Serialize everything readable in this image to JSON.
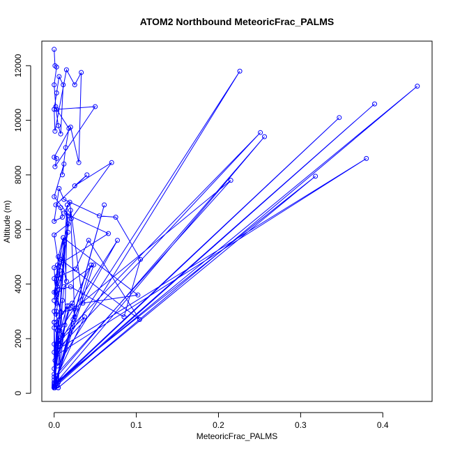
{
  "chart_data": {
    "type": "line",
    "title": "ATOM2 Northbound MeteoricFrac_PALMS",
    "xlabel": "MeteoricFrac_PALMS",
    "ylabel": "Altitude (m)",
    "xlim": [
      -0.015,
      0.46
    ],
    "ylim": [
      -300,
      12900
    ],
    "xticks": [
      0.0,
      0.1,
      0.2,
      0.3,
      0.4
    ],
    "xtick_labels": [
      "0.0",
      "0.1",
      "0.2",
      "0.3",
      "0.4"
    ],
    "yticks": [
      0,
      2000,
      4000,
      6000,
      8000,
      10000,
      12000
    ],
    "ytick_labels": [
      "0",
      "2000",
      "4000",
      "6000",
      "8000",
      "10000",
      "12000"
    ],
    "grid": false,
    "legend": "none",
    "colors": {
      "series": "#0000ff",
      "axis": "#000000",
      "background": "#ffffff"
    },
    "series": [
      {
        "marker": "open-circle",
        "line": true,
        "x": [
          0.0,
          0.001,
          0.003,
          0.0,
          0.002,
          0.005,
          0.008,
          0.011,
          0.006,
          0.003,
          0.0,
          0.001,
          0.015,
          0.025,
          0.033,
          0.03,
          0.02,
          0.0,
          0.003,
          0.001,
          0.05,
          0.003,
          0.018,
          0.014,
          0.01,
          0.012,
          0.0,
          0.021,
          0.07,
          0.025,
          0.04,
          0.002,
          0.008,
          0.01,
          0.0,
          0.006,
          0.012,
          0.055,
          0.075,
          0.105,
          0.085,
          0.02,
          0.006,
          0.0,
          0.003,
          0.004,
          0.007,
          0.017,
          0.013,
          0.0,
          0.004,
          0.017,
          0.0,
          0.008,
          0.002,
          0.0,
          0.066,
          0.012,
          0.019,
          0.035,
          0.102,
          0.011,
          0.004,
          0.0,
          0.009,
          0.003,
          0.0,
          0.026,
          0.042,
          0.104,
          0.008,
          0.015,
          0.011,
          0.005,
          0.0,
          0.022,
          0.025,
          0.02,
          0.003,
          0.004,
          0.0,
          0.016,
          0.0,
          0.001,
          0.0,
          0.215,
          0.025,
          0.002,
          0.01,
          0.0,
          0.251,
          0.004,
          0.38,
          0.003,
          0.226,
          0.004,
          0.018,
          0.0,
          0.0,
          0.002,
          0.045,
          0.019,
          0.006,
          0.077,
          0.007,
          0.0,
          0.017,
          0.0,
          0.256,
          0.0,
          0.347,
          0.005,
          0.001,
          0.0,
          0.016,
          0.013,
          0.004,
          0.0,
          0.0,
          0.318,
          0.005,
          0.01,
          0.0,
          0.39,
          0.0,
          0.005,
          0.0,
          0.061,
          0.023,
          0.001,
          0.003,
          0.0,
          0.442,
          0.005,
          0.0,
          0.012,
          0.048,
          0.0,
          0.006,
          0.037,
          0.0,
          0.0
        ],
        "y": [
          12600,
          12000,
          11950,
          11300,
          10500,
          9800,
          9500,
          11300,
          11600,
          11000,
          10400,
          9600,
          11850,
          11300,
          11750,
          8450,
          9750,
          8650,
          8600,
          8300,
          10500,
          10400,
          9700,
          9000,
          8000,
          8400,
          7200,
          6400,
          8450,
          7600,
          8000,
          6900,
          6800,
          6450,
          6300,
          7500,
          7100,
          6500,
          6450,
          4900,
          2800,
          3900,
          3800,
          3000,
          3300,
          3900,
          4500,
          5900,
          5600,
          3400,
          4700,
          6200,
          5800,
          4200,
          3700,
          4600,
          5850,
          6600,
          7000,
          3300,
          3600,
          5700,
          4300,
          3700,
          2950,
          3600,
          4200,
          4550,
          5600,
          2700,
          4900,
          4100,
          5700,
          5000,
          2600,
          3300,
          2800,
          6700,
          3000,
          2300,
          1500,
          3200,
          2400,
          1200,
          600,
          7800,
          3100,
          2900,
          2100,
          1800,
          9550,
          1600,
          8600,
          1400,
          11800,
          1000,
          3200,
          700,
          2600,
          400,
          4700,
          3100,
          1800,
          5600,
          2300,
          900,
          6500,
          500,
          9400,
          300,
          10100,
          400,
          250,
          200,
          6900,
          2500,
          300,
          200,
          350,
          7950,
          200,
          3400,
          250,
          10600,
          200,
          1800,
          250,
          6900,
          2700,
          200,
          2500,
          300,
          11250,
          200,
          200,
          3900,
          4700,
          200,
          1900,
          2800,
          400,
          200
        ]
      }
    ]
  }
}
